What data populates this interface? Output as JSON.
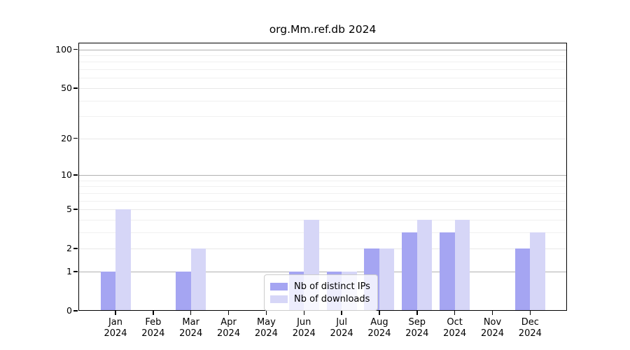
{
  "title": "org.Mm.ref.db 2024",
  "chart_data": {
    "type": "bar",
    "title": "org.Mm.ref.db 2024",
    "categories": [
      "Jan 2024",
      "Feb 2024",
      "Mar 2024",
      "Apr 2024",
      "May 2024",
      "Jun 2024",
      "Jul 2024",
      "Aug 2024",
      "Sep 2024",
      "Oct 2024",
      "Nov 2024",
      "Dec 2024"
    ],
    "series": [
      {
        "name": "Nb of distinct IPs",
        "color": "#a5a5f2",
        "values": [
          1,
          0,
          1,
          0,
          0,
          1,
          1,
          2,
          3,
          3,
          0,
          2
        ]
      },
      {
        "name": "Nb of downloads",
        "color": "#d6d6f7",
        "values": [
          5,
          0,
          2,
          0,
          0,
          4,
          1,
          2,
          4,
          4,
          0,
          3
        ]
      }
    ],
    "xlabel": "",
    "ylabel": "",
    "y_scale": "log1p",
    "ylim": [
      0,
      112
    ],
    "y_ticks": [
      0,
      1,
      2,
      5,
      10,
      20,
      50,
      100
    ],
    "y_major_gridlines": [
      1,
      10,
      100
    ],
    "y_labeled_gridlines": [
      2,
      5,
      20,
      50
    ],
    "y_minor_gridlines": [
      3,
      4,
      6,
      7,
      8,
      9,
      30,
      40,
      60,
      70,
      80,
      90
    ],
    "grid": true,
    "legend_position": "bottom-center"
  }
}
